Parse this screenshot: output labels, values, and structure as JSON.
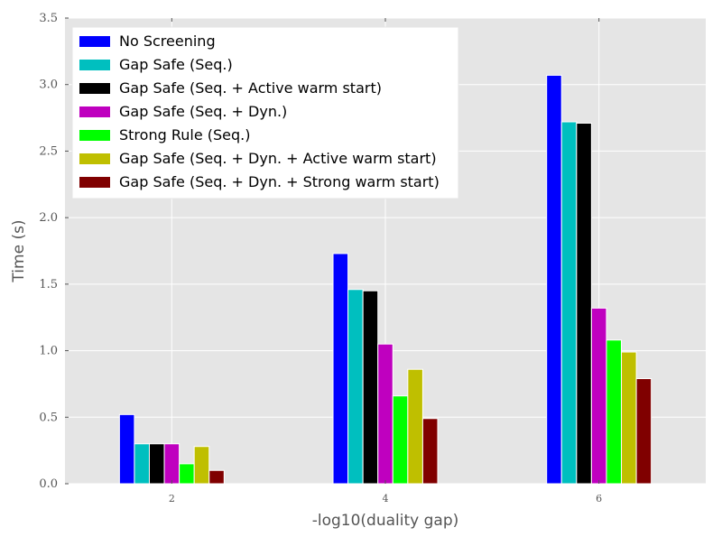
{
  "chart_data": {
    "type": "bar",
    "title": "",
    "xlabel": "-log10(duality gap)",
    "ylabel": "Time (s)",
    "categories": [
      "2",
      "4",
      "6"
    ],
    "x": [
      2,
      4,
      6
    ],
    "xlim": [
      1,
      7
    ],
    "ylim": [
      0,
      3.5
    ],
    "yticks": [
      "0.0",
      "0.5",
      "1.0",
      "1.5",
      "2.0",
      "2.5",
      "3.0",
      "3.5"
    ],
    "grid": true,
    "legend_position": "top-left",
    "background_color": "#e5e5e5",
    "series": [
      {
        "name": "No Screening",
        "color": "#0000ff",
        "values": [
          0.52,
          1.73,
          3.07
        ]
      },
      {
        "name": "Gap Safe (Seq.)",
        "color": "#00bfbf",
        "values": [
          0.3,
          1.46,
          2.72
        ]
      },
      {
        "name": "Gap Safe (Seq. + Active warm start)",
        "color": "#000000",
        "values": [
          0.3,
          1.45,
          2.71
        ]
      },
      {
        "name": "Gap Safe (Seq. + Dyn.)",
        "color": "#bf00bf",
        "values": [
          0.3,
          1.05,
          1.32
        ]
      },
      {
        "name": "Strong Rule (Seq.)",
        "color": "#00ff00",
        "values": [
          0.15,
          0.66,
          1.08
        ]
      },
      {
        "name": "Gap Safe (Seq. + Dyn. + Active warm start)",
        "color": "#bfbf00",
        "values": [
          0.28,
          0.86,
          0.99
        ]
      },
      {
        "name": "Gap Safe (Seq. + Dyn. + Strong warm start)",
        "color": "#800000",
        "values": [
          0.1,
          0.49,
          0.79
        ]
      }
    ]
  }
}
